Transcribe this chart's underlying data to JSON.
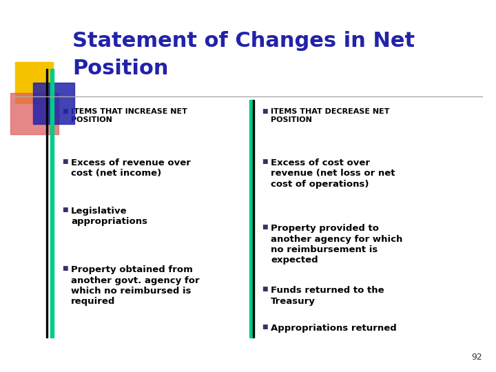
{
  "title_line1": "Statement of Changes in Net",
  "title_line2": "Position",
  "title_color": "#2222aa",
  "bg_color": "#ffffff",
  "left_header": "ITEMS THAT INCREASE NET\nPOSITION",
  "left_bullets": [
    "Excess of revenue over\ncost (net income)",
    "Legislative\nappropriations",
    "Property obtained from\nanother govt. agency for\nwhich no reimbursed is\nrequired"
  ],
  "right_header": "ITEMS THAT DECREASE NET\nPOSITION",
  "right_bullets": [
    "Excess of cost over\nrevenue (net loss or net\ncost of operations)",
    "Property provided to\nanother agency for which\nno reimbursement is\nexpected",
    "Funds returned to the\nTreasury",
    "Appropriations returned"
  ],
  "header_fontsize": 8.0,
  "bullet_fontsize": 9.5,
  "title_fontsize": 22,
  "page_number": "92",
  "accent_yellow": "#f5c200",
  "accent_pink": "#e06060",
  "accent_blue": "#2222aa",
  "accent_teal": "#00cc88",
  "bullet_square_color": "#333366"
}
